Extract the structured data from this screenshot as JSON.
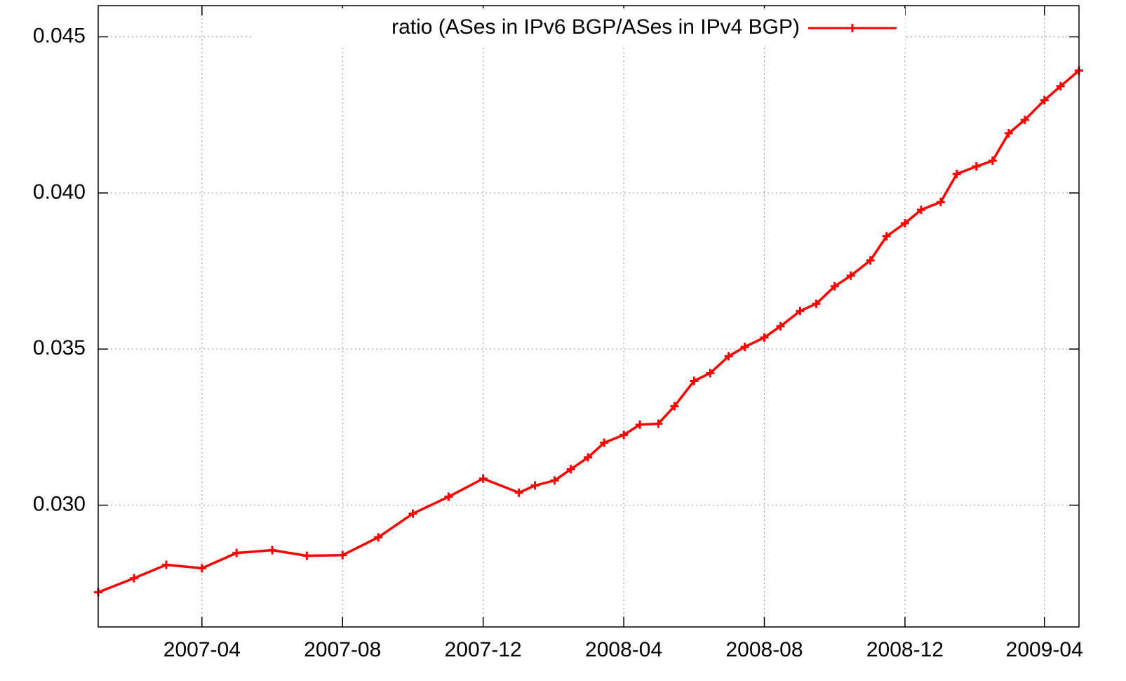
{
  "chart_data": {
    "type": "line",
    "x": [
      "2007-01-01",
      "2007-02-01",
      "2007-03-01",
      "2007-04-01",
      "2007-05-01",
      "2007-06-01",
      "2007-07-01",
      "2007-08-01",
      "2007-09-01",
      "2007-10-01",
      "2007-11-01",
      "2007-12-01",
      "2008-01-01",
      "2008-01-15",
      "2008-02-01",
      "2008-02-15",
      "2008-03-01",
      "2008-03-15",
      "2008-04-01",
      "2008-04-15",
      "2008-05-01",
      "2008-05-15",
      "2008-06-01",
      "2008-06-15",
      "2008-07-01",
      "2008-07-15",
      "2008-08-01",
      "2008-08-15",
      "2008-09-01",
      "2008-09-15",
      "2008-10-01",
      "2008-10-15",
      "2008-11-01",
      "2008-11-15",
      "2008-12-01",
      "2008-12-15",
      "2009-01-01",
      "2009-01-15",
      "2009-02-01",
      "2009-02-15",
      "2009-03-01",
      "2009-03-15",
      "2009-04-01",
      "2009-04-15",
      "2009-05-01"
    ],
    "series": [
      {
        "name": "ratio (ASes in IPv6 BGP/ASes in IPv4 BGP)",
        "color": "#ff0000",
        "values": [
          0.02721,
          0.02766,
          0.02809,
          0.02798,
          0.02847,
          0.02856,
          0.02838,
          0.0284,
          0.02897,
          0.02973,
          0.03027,
          0.03085,
          0.0304,
          0.03063,
          0.03079,
          0.03115,
          0.03153,
          0.032,
          0.03225,
          0.03258,
          0.03261,
          0.03317,
          0.03398,
          0.03423,
          0.03477,
          0.03507,
          0.03537,
          0.03573,
          0.03622,
          0.03645,
          0.03701,
          0.03735,
          0.03784,
          0.03861,
          0.03903,
          0.03946,
          0.03971,
          0.04061,
          0.04085,
          0.04103,
          0.04191,
          0.04234,
          0.04297,
          0.04342,
          0.04392
        ]
      }
    ],
    "xlim": [
      "2007-01-01",
      "2009-05-01"
    ],
    "xticks": [
      {
        "value": "2007-04-01",
        "label": "2007-04"
      },
      {
        "value": "2007-08-01",
        "label": "2007-08"
      },
      {
        "value": "2007-12-01",
        "label": "2007-12"
      },
      {
        "value": "2008-04-01",
        "label": "2008-04"
      },
      {
        "value": "2008-08-01",
        "label": "2008-08"
      },
      {
        "value": "2008-12-01",
        "label": "2008-12"
      },
      {
        "value": "2009-04-01",
        "label": "2009-04"
      }
    ],
    "ylim": [
      0.0261,
      0.046
    ],
    "yticks": [
      {
        "value": 0.03,
        "label": "0.030"
      },
      {
        "value": 0.035,
        "label": "0.035"
      },
      {
        "value": 0.04,
        "label": "0.040"
      },
      {
        "value": 0.045,
        "label": "0.045"
      }
    ],
    "grid": true,
    "legend": "top"
  }
}
